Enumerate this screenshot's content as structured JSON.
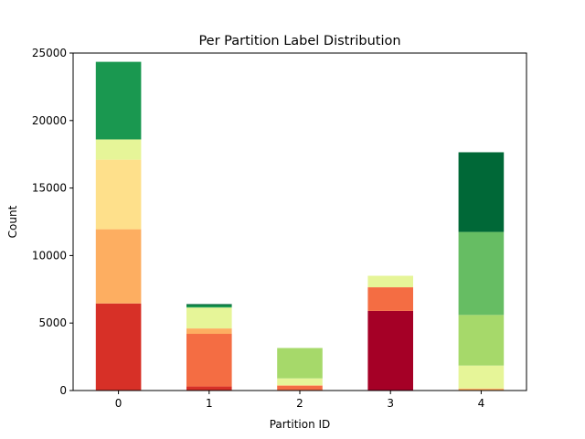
{
  "chart_data": {
    "type": "bar",
    "stacked": true,
    "title": "Per Partition Label Distribution",
    "xlabel": "Partition ID",
    "ylabel": "Count",
    "categories": [
      "0",
      "1",
      "2",
      "3",
      "4"
    ],
    "ylim": [
      0,
      25000
    ],
    "yticks": [
      0,
      5000,
      10000,
      15000,
      20000,
      25000
    ],
    "ytick_labels": [
      "0",
      "5000",
      "10000",
      "15000",
      "20000",
      "25000"
    ],
    "grid": false,
    "legend": "none",
    "series": [
      {
        "color": "#a50026",
        "values": [
          0,
          0,
          0,
          5900,
          0
        ]
      },
      {
        "color": "#d73027",
        "values": [
          6450,
          300,
          0,
          0,
          0
        ]
      },
      {
        "color": "#f46d43",
        "values": [
          0,
          3900,
          350,
          1750,
          0
        ]
      },
      {
        "color": "#fdae61",
        "values": [
          5500,
          400,
          50,
          0,
          150
        ]
      },
      {
        "color": "#fee08b",
        "values": [
          5150,
          0,
          0,
          0,
          0
        ]
      },
      {
        "color": "#e6f598",
        "values": [
          1500,
          1550,
          500,
          850,
          1700
        ]
      },
      {
        "color": "#a6d96a",
        "values": [
          0,
          0,
          2250,
          0,
          3750
        ]
      },
      {
        "color": "#66bd63",
        "values": [
          0,
          0,
          0,
          0,
          6150
        ]
      },
      {
        "color": "#1a9850",
        "values": [
          5750,
          150,
          0,
          0,
          0
        ]
      },
      {
        "color": "#006837",
        "values": [
          0,
          100,
          0,
          0,
          5900
        ]
      }
    ]
  }
}
